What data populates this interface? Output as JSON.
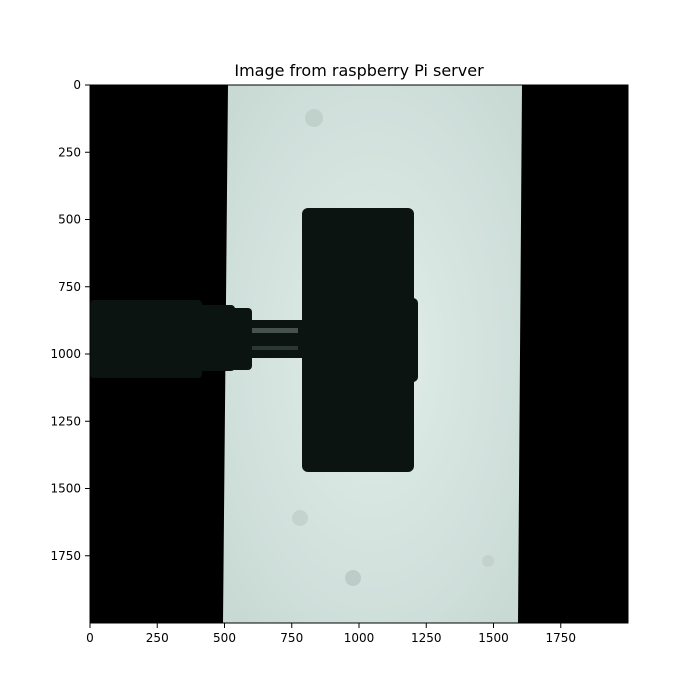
{
  "chart_data": {
    "type": "image",
    "title": "Image from raspberry Pi server",
    "xlabel": "",
    "ylabel": "",
    "xlim": [
      0,
      2000
    ],
    "ylim": [
      2000,
      0
    ],
    "xticks": [
      0,
      250,
      500,
      750,
      1000,
      1250,
      1500,
      1750
    ],
    "yticks": [
      0,
      250,
      500,
      750,
      1000,
      1250,
      1500,
      1750
    ],
    "grid": false,
    "colors": {
      "background": "#000000",
      "backlight": "#d5e4e0",
      "silhouette": "#0b1411"
    }
  }
}
